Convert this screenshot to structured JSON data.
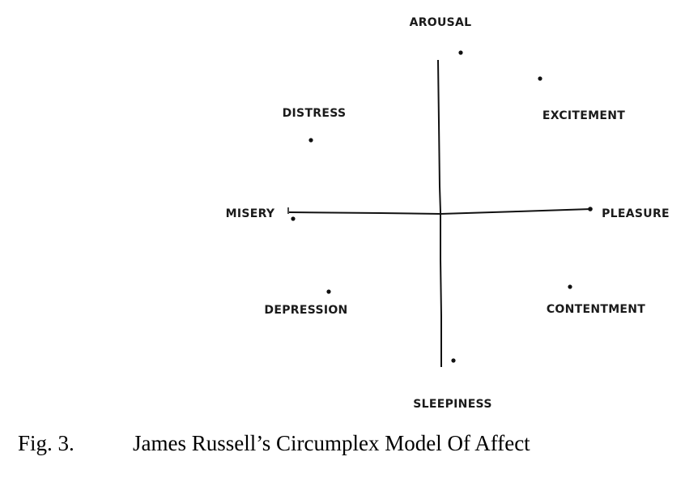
{
  "diagram": {
    "labels": {
      "arousal": "AROUSAL",
      "excitement": "EXCITEMENT",
      "distress": "DISTRESS",
      "misery": "MISERY",
      "pleasure": "PLEASURE",
      "depression": "DEPRESSION",
      "contentment": "CONTENTMENT",
      "sleepiness": "SLEEPINESS"
    }
  },
  "caption": {
    "number": "Fig. 3.",
    "title": "James Russell’s Circumplex Model Of Affect"
  }
}
